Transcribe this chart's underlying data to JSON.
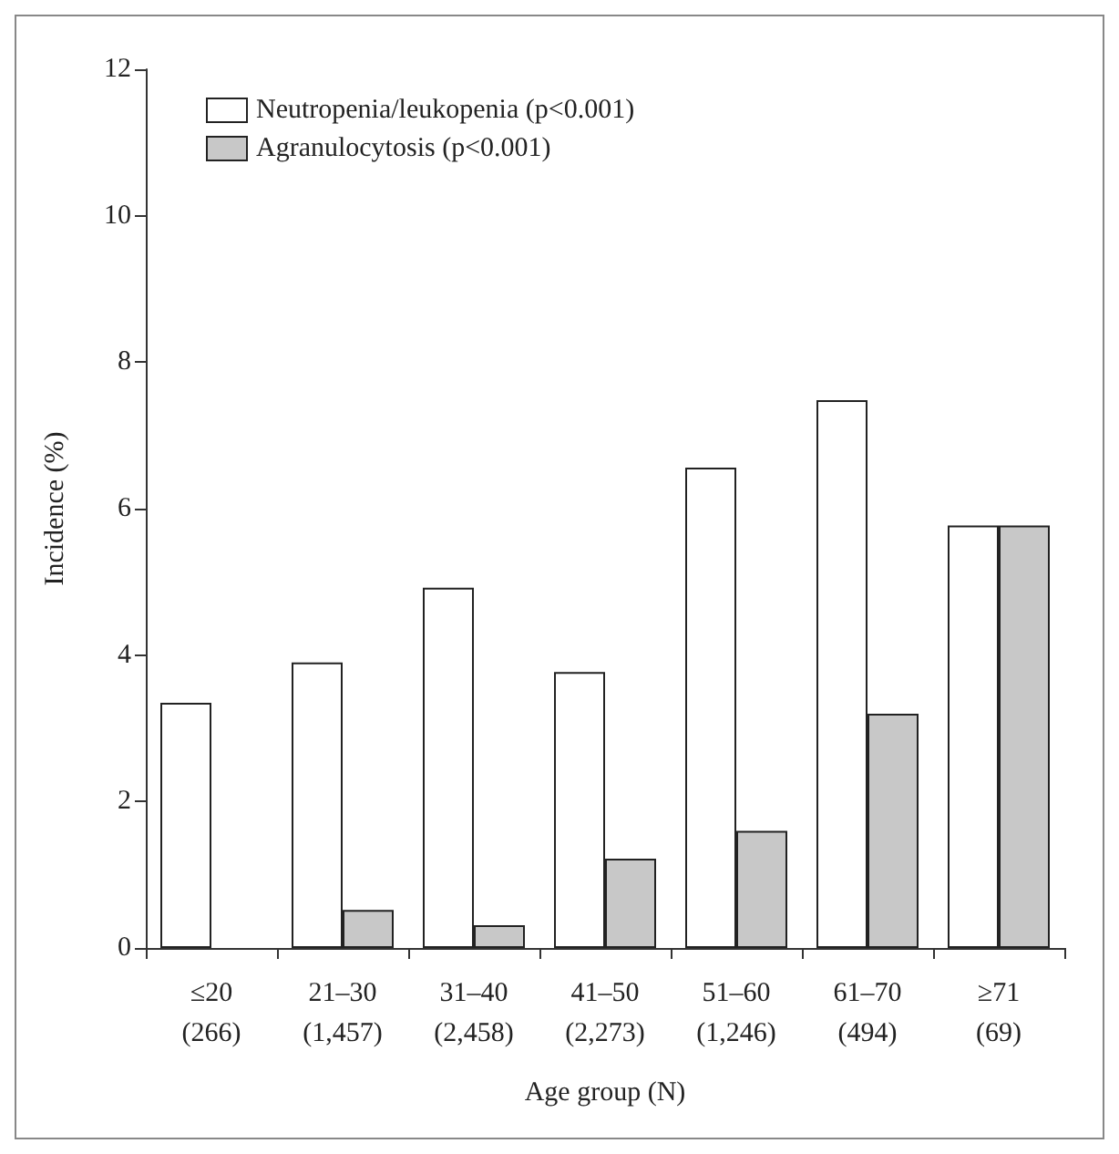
{
  "chart_data": {
    "type": "bar",
    "xlabel": "Age group (N)",
    "ylabel": "Incidence (%)",
    "categories": [
      "≤20\n(266)",
      "21–30\n(1,457)",
      "31–40\n(2,458)",
      "41–50\n(2,273)",
      "51–60\n(1,246)",
      "61–70\n(494)",
      "≥71\n(69)"
    ],
    "series": [
      {
        "name": "Neutropenia/leukopenia (p<0.001)",
        "color": "#ffffff",
        "values": [
          3.35,
          3.9,
          4.92,
          3.77,
          6.56,
          7.48,
          5.77
        ]
      },
      {
        "name": "Agranulocytosis (p<0.001)",
        "color": "#c8c8c8",
        "values": [
          null,
          0.52,
          0.31,
          1.22,
          1.6,
          3.2,
          5.77
        ]
      }
    ],
    "ylim": [
      0,
      12
    ],
    "yticks": [
      0,
      2,
      4,
      6,
      8,
      10,
      12
    ],
    "grid": false,
    "legend": "top left"
  }
}
